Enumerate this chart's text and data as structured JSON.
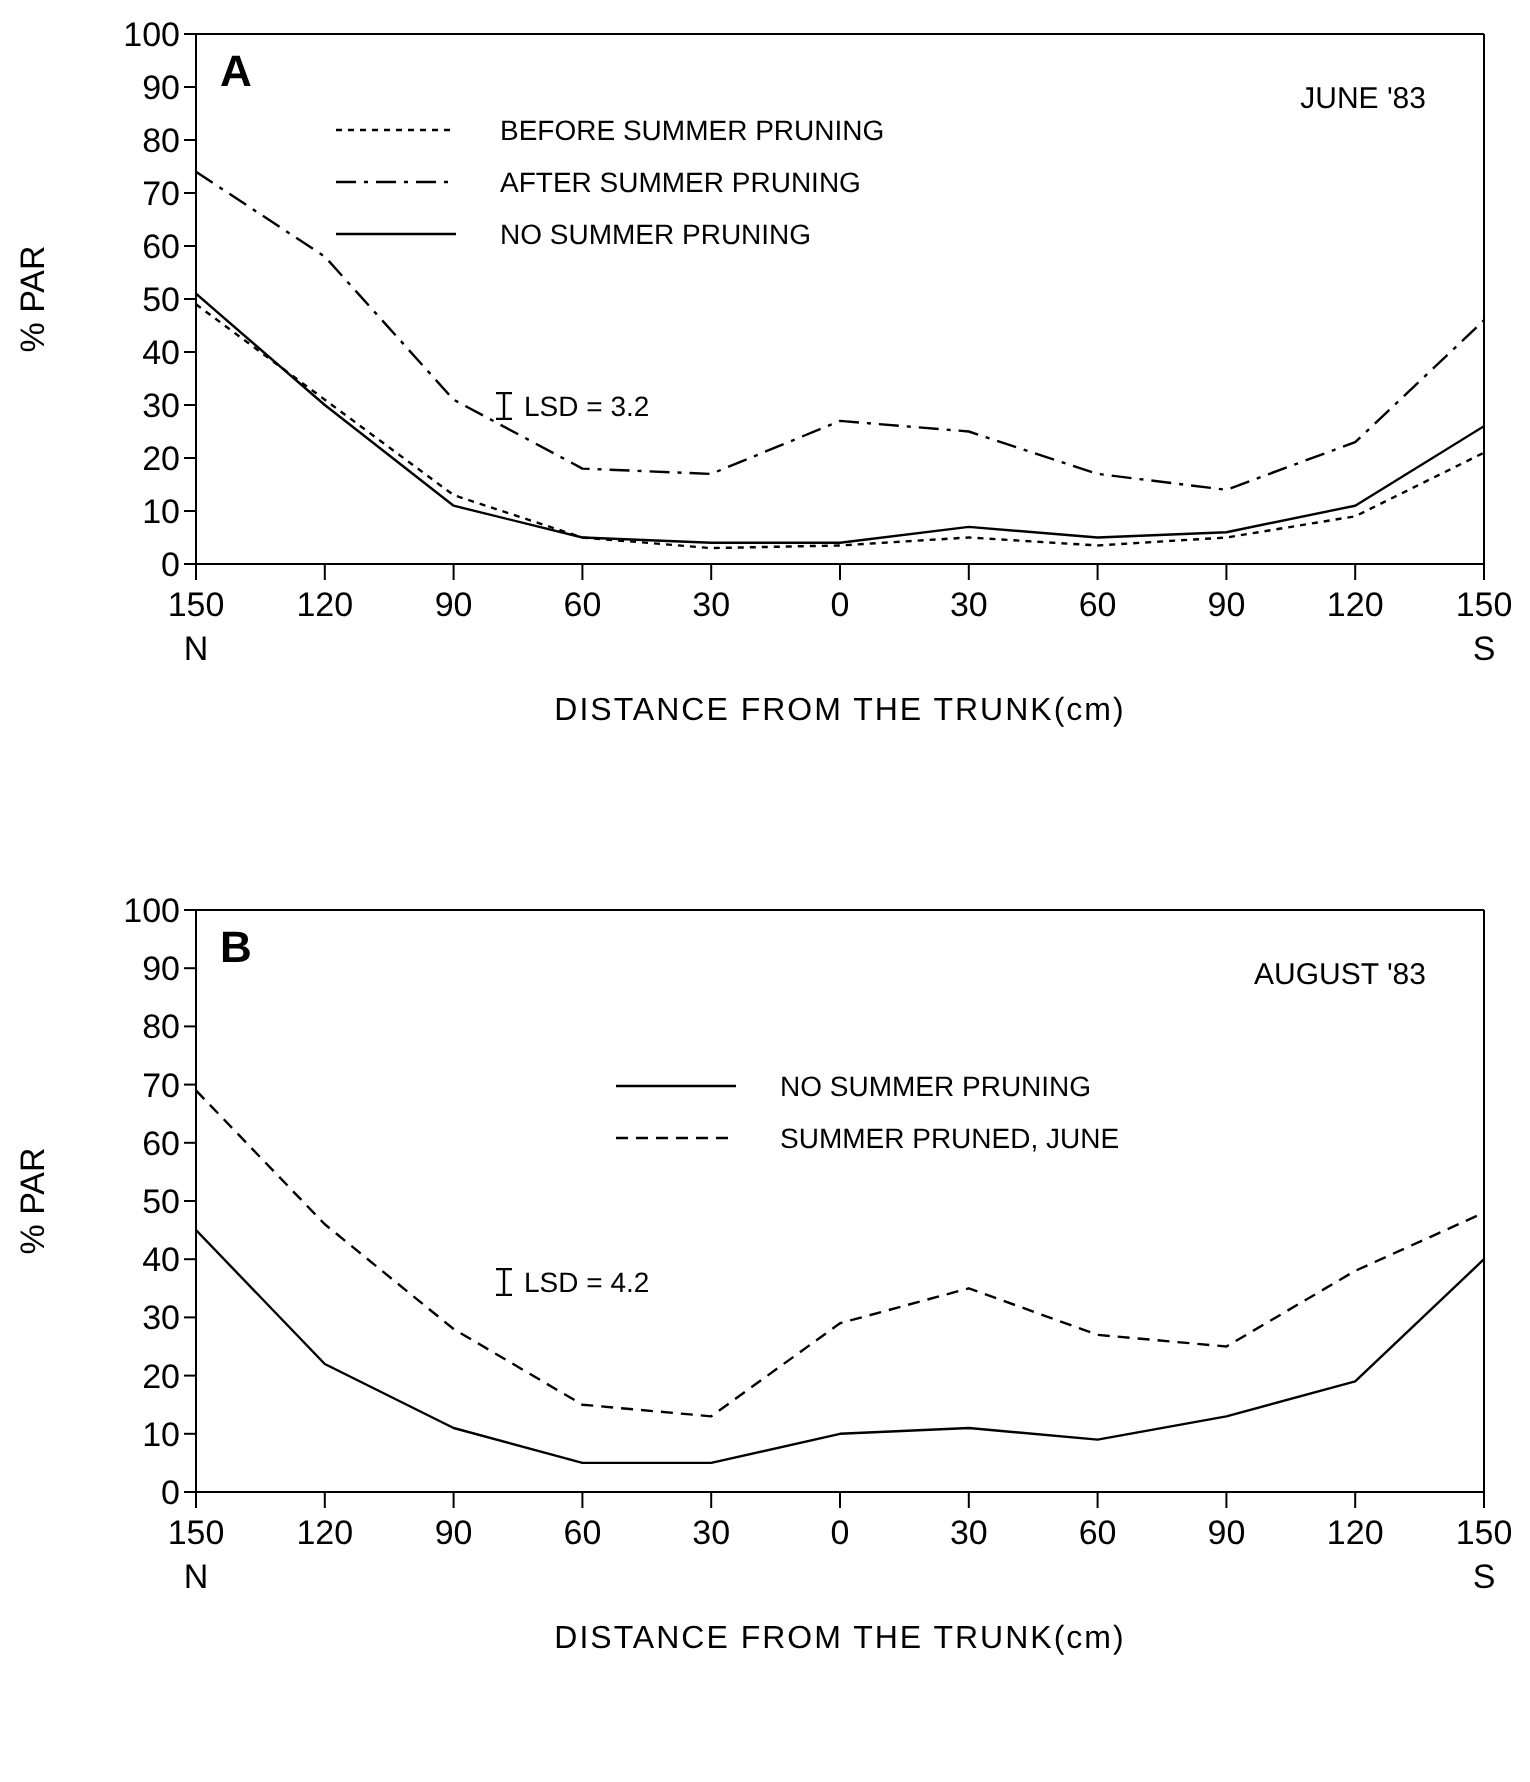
{
  "chart_data": [
    {
      "type": "line",
      "title": "A",
      "subtitle": "JUNE '83",
      "xlabel": "DISTANCE FROM THE TRUNK(cm)",
      "ylabel": "% PAR",
      "x": [
        -150,
        -120,
        -90,
        -60,
        -30,
        0,
        30,
        60,
        90,
        120,
        150
      ],
      "xlim": [
        -150,
        150
      ],
      "xticks": [
        {
          "value": -150,
          "label": "150"
        },
        {
          "value": -120,
          "label": "120"
        },
        {
          "value": -90,
          "label": "90"
        },
        {
          "value": -60,
          "label": "60"
        },
        {
          "value": -30,
          "label": "30"
        },
        0,
        30,
        60,
        90,
        120,
        150
      ],
      "ylim": [
        0,
        100
      ],
      "yticks": [
        0,
        10,
        20,
        30,
        40,
        50,
        60,
        70,
        80,
        90,
        100
      ],
      "series": [
        {
          "name": "BEFORE SUMMER PRUNING",
          "color": "#000000",
          "line_style": "dotted",
          "values": [
            49,
            31,
            13,
            5,
            3,
            3.5,
            5,
            3.5,
            5,
            9,
            21
          ]
        },
        {
          "name": "AFTER SUMMER PRUNING",
          "color": "#000000",
          "line_style": "dashdot",
          "values": [
            74,
            58,
            31,
            18,
            17,
            27,
            25,
            17,
            14,
            23,
            46
          ]
        },
        {
          "name": "NO SUMMER PRUNING",
          "color": "#000000",
          "line_style": "solid",
          "values": [
            51,
            30,
            11,
            5,
            4,
            4,
            7,
            5,
            6,
            11,
            26
          ]
        }
      ],
      "annotations": [
        "LSD = 3.2",
        "N",
        "S"
      ],
      "legend": "top left",
      "grid": false,
      "marker": "none"
    },
    {
      "type": "line",
      "title": "B",
      "subtitle": "AUGUST '83",
      "xlabel": "DISTANCE FROM THE TRUNK(cm)",
      "ylabel": "% PAR",
      "x": [
        -150,
        -120,
        -90,
        -60,
        -30,
        0,
        30,
        60,
        90,
        120,
        150
      ],
      "xlim": [
        -150,
        150
      ],
      "xticks": [
        {
          "value": -150,
          "label": "150"
        },
        {
          "value": -120,
          "label": "120"
        },
        {
          "value": -90,
          "label": "90"
        },
        {
          "value": -60,
          "label": "60"
        },
        {
          "value": -30,
          "label": "30"
        },
        0,
        30,
        60,
        90,
        120,
        150
      ],
      "ylim": [
        0,
        100
      ],
      "yticks": [
        0,
        10,
        20,
        30,
        40,
        50,
        60,
        70,
        80,
        90,
        100
      ],
      "series": [
        {
          "name": "NO SUMMER PRUNING",
          "color": "#000000",
          "line_style": "solid",
          "values": [
            45,
            22,
            11,
            5,
            5,
            10,
            11,
            9,
            13,
            19,
            40
          ]
        },
        {
          "name": "SUMMER PRUNED, JUNE",
          "color": "#000000",
          "line_style": "dashed",
          "values": [
            69,
            46,
            28,
            15,
            13,
            29,
            35,
            27,
            25,
            38,
            48
          ]
        }
      ],
      "annotations": [
        "LSD = 4.2",
        "N",
        "S"
      ],
      "legend": "top right",
      "grid": false,
      "marker": "none"
    }
  ]
}
